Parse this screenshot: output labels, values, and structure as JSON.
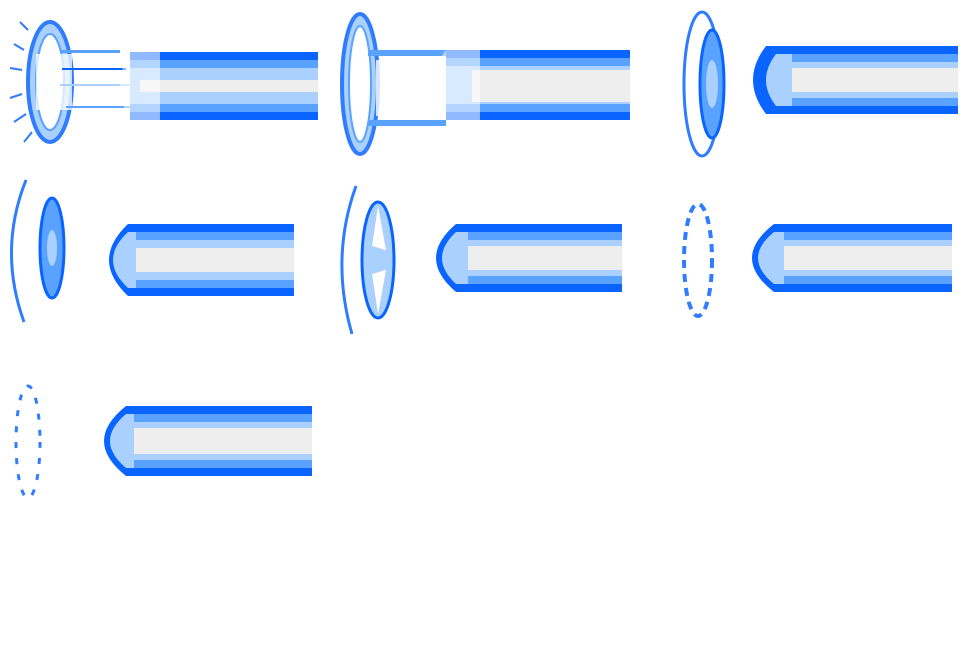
{
  "sprite_sheet": {
    "title": "",
    "colors": {
      "background": "#ffffff",
      "beam_core": "#eeeeee",
      "beam_blue": "#0a64ff",
      "beam_light_blue": "#5aa2ff",
      "beam_pale_blue": "#a9d0ff",
      "ring_blue": "#2f7cff"
    },
    "frames": [
      {
        "name": "frame-1",
        "stage": "muzzle-burst"
      },
      {
        "name": "frame-2",
        "stage": "muzzle-burst"
      },
      {
        "name": "frame-3",
        "stage": "ring-expanding"
      },
      {
        "name": "frame-4",
        "stage": "ring-fading"
      },
      {
        "name": "frame-5",
        "stage": "ring-fading"
      },
      {
        "name": "frame-6",
        "stage": "ring-fading"
      },
      {
        "name": "frame-7",
        "stage": "ring-dissipated"
      }
    ]
  }
}
